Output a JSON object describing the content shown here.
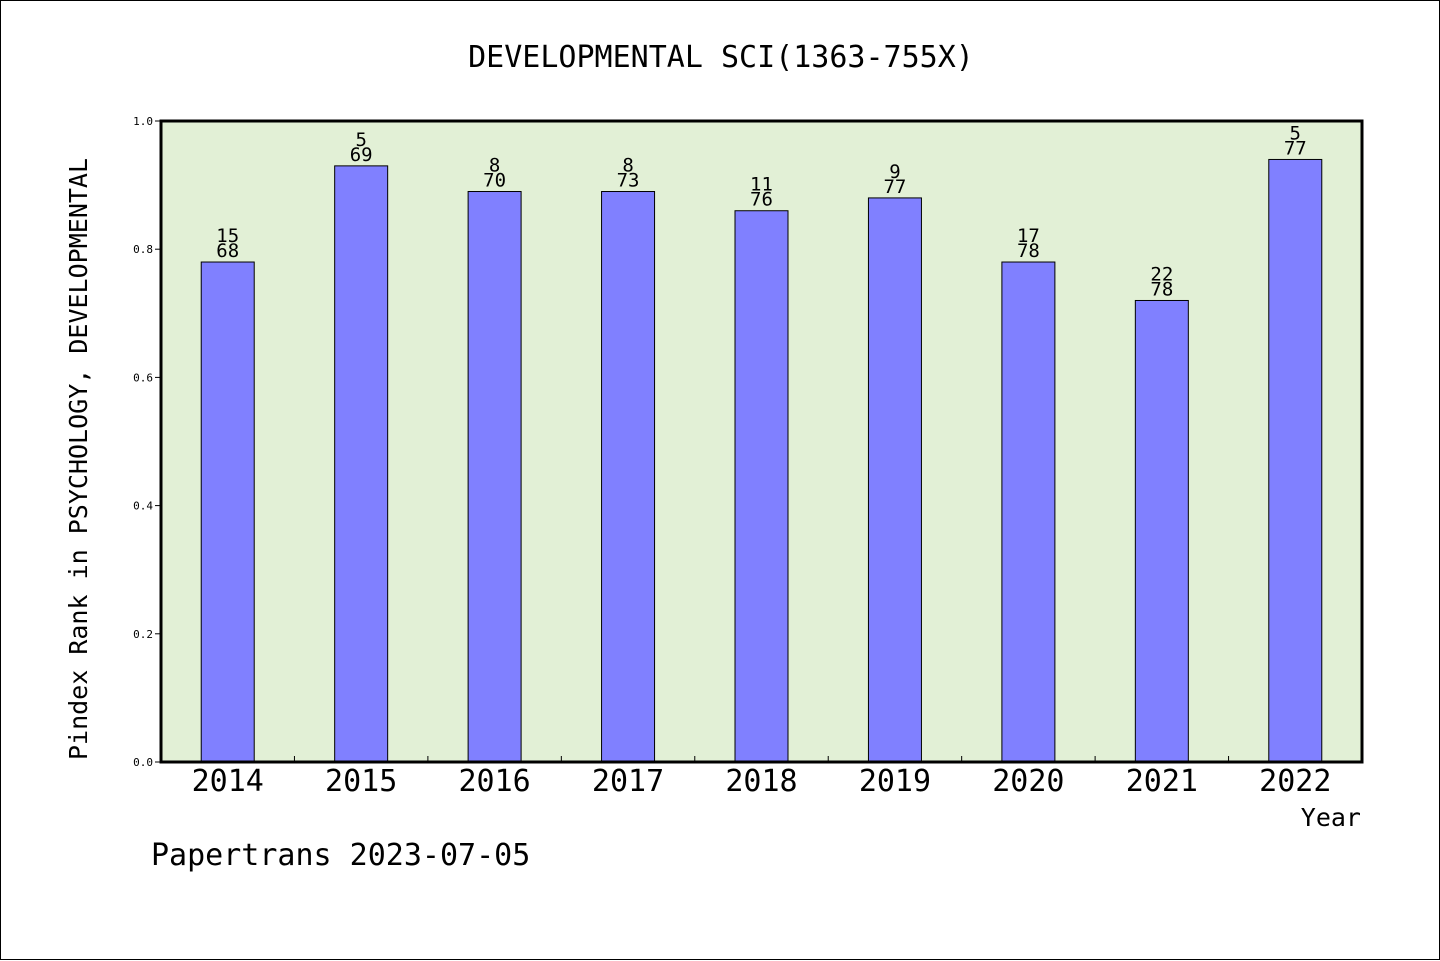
{
  "chart_data": {
    "type": "bar",
    "title": "DEVELOPMENTAL SCI(1363-755X)",
    "xlabel": "Year",
    "ylabel": "Pindex Rank in PSYCHOLOGY, DEVELOPMENTAL",
    "categories": [
      "2014",
      "2015",
      "2016",
      "2017",
      "2018",
      "2019",
      "2020",
      "2021",
      "2022"
    ],
    "values": [
      0.78,
      0.93,
      0.89,
      0.89,
      0.86,
      0.88,
      0.78,
      0.72,
      0.94
    ],
    "rank_labels": [
      "15",
      "5",
      "8",
      "8",
      "11",
      "9",
      "17",
      "22",
      "5"
    ],
    "total_labels": [
      "68",
      "69",
      "70",
      "73",
      "76",
      "77",
      "78",
      "78",
      "77"
    ],
    "ylim": [
      0,
      1.0
    ],
    "yticks": [
      "0.0",
      "0.2",
      "0.4",
      "0.6",
      "0.8",
      "1.0"
    ],
    "grid": false,
    "colors": {
      "bar": "#8080ff",
      "plot_background": "#e2f0d6",
      "axis": "#000000"
    }
  },
  "footer": {
    "credit": "Papertrans 2023-07-05"
  }
}
